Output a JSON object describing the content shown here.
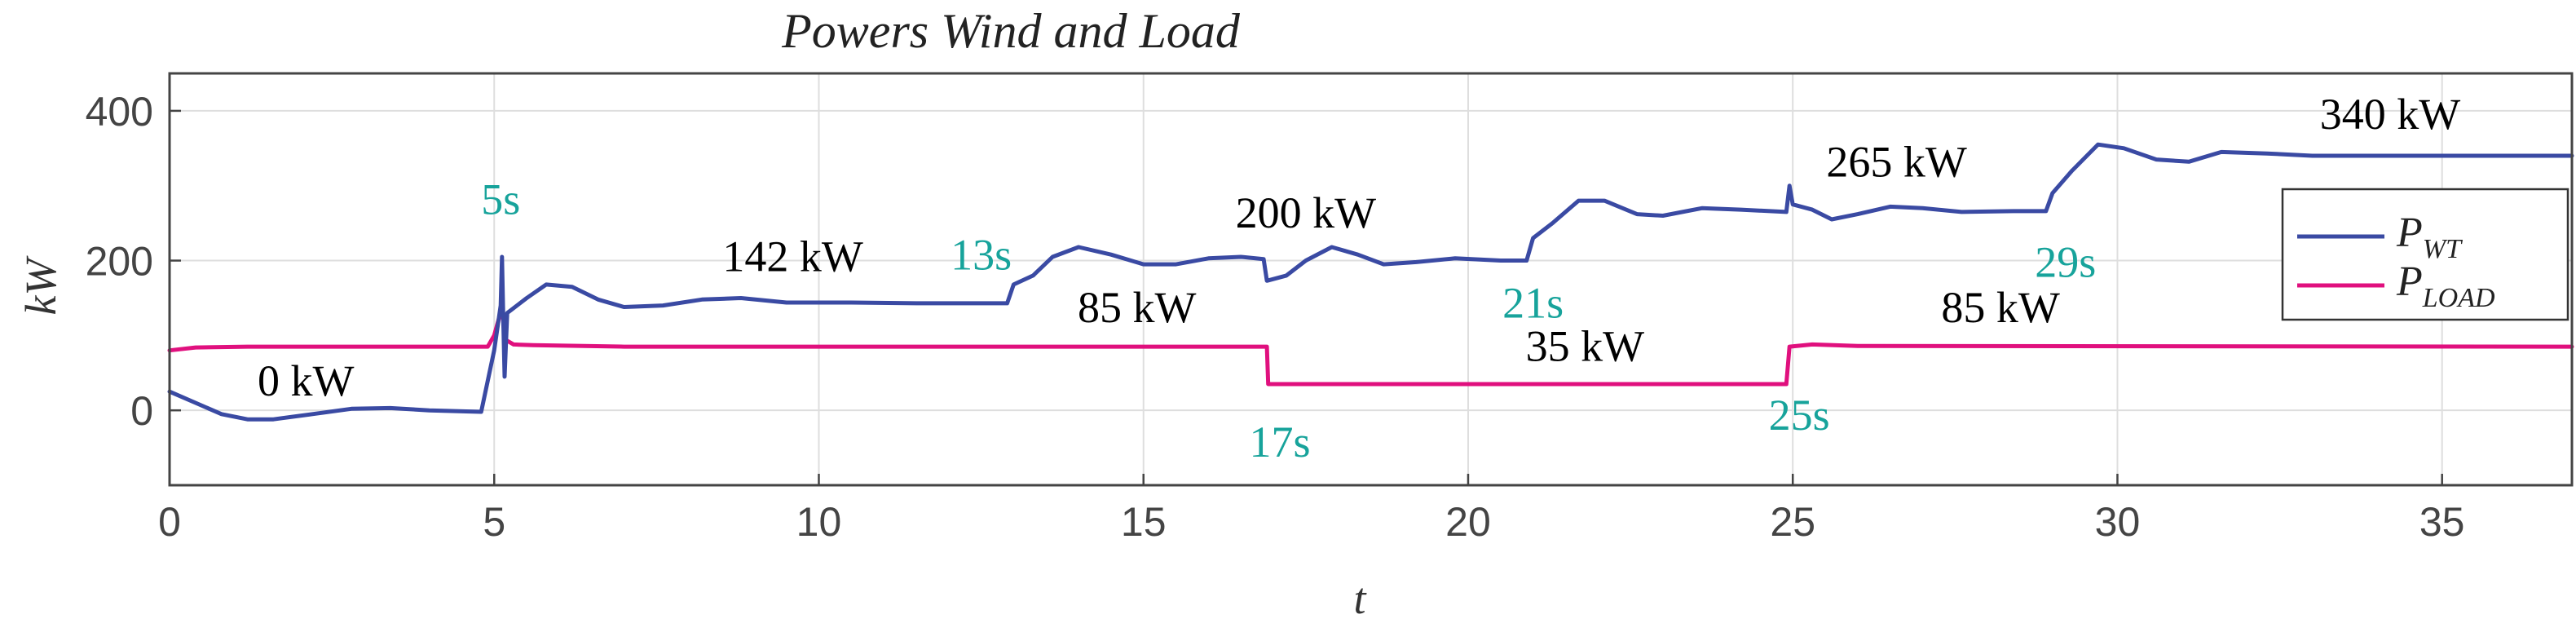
{
  "chart_data": {
    "type": "line",
    "title": "Powers Wind and Load",
    "xlabel": "t",
    "ylabel": "kW",
    "xlim": [
      0,
      37
    ],
    "ylim": [
      -100,
      450
    ],
    "xticks": [
      0,
      5,
      10,
      15,
      20,
      25,
      30,
      35
    ],
    "yticks": [
      0,
      200,
      400
    ],
    "grid": true,
    "legend_position": "right",
    "series": [
      {
        "name": "P_WT",
        "legend_main": "P",
        "legend_sub": "WT",
        "color": "#3a4aa3",
        "points": [
          [
            0,
            25
          ],
          [
            0.4,
            10
          ],
          [
            0.8,
            -5
          ],
          [
            1.2,
            -12
          ],
          [
            1.6,
            -12
          ],
          [
            2.2,
            -5
          ],
          [
            2.8,
            2
          ],
          [
            3.4,
            3
          ],
          [
            4,
            0
          ],
          [
            4.8,
            -2
          ],
          [
            5.0,
            80
          ],
          [
            5.1,
            140
          ],
          [
            5.12,
            205
          ],
          [
            5.14,
            120
          ],
          [
            5.16,
            45
          ],
          [
            5.2,
            130
          ],
          [
            5.5,
            150
          ],
          [
            5.8,
            168
          ],
          [
            6.2,
            165
          ],
          [
            6.6,
            148
          ],
          [
            7.0,
            138
          ],
          [
            7.6,
            140
          ],
          [
            8.2,
            148
          ],
          [
            8.8,
            150
          ],
          [
            9.5,
            144
          ],
          [
            10.5,
            144
          ],
          [
            11.5,
            143
          ],
          [
            12.5,
            143
          ],
          [
            12.9,
            143
          ],
          [
            13.0,
            168
          ],
          [
            13.3,
            180
          ],
          [
            13.6,
            205
          ],
          [
            14.0,
            218
          ],
          [
            14.5,
            208
          ],
          [
            15.0,
            195
          ],
          [
            15.5,
            195
          ],
          [
            16.0,
            203
          ],
          [
            16.5,
            205
          ],
          [
            16.85,
            202
          ],
          [
            16.9,
            173
          ],
          [
            17.2,
            180
          ],
          [
            17.5,
            200
          ],
          [
            17.9,
            218
          ],
          [
            18.3,
            208
          ],
          [
            18.7,
            195
          ],
          [
            19.2,
            198
          ],
          [
            19.8,
            203
          ],
          [
            20.5,
            200
          ],
          [
            20.9,
            200
          ],
          [
            21.0,
            230
          ],
          [
            21.3,
            250
          ],
          [
            21.7,
            280
          ],
          [
            22.1,
            280
          ],
          [
            22.6,
            262
          ],
          [
            23.0,
            260
          ],
          [
            23.6,
            270
          ],
          [
            24.2,
            268
          ],
          [
            24.9,
            265
          ],
          [
            24.95,
            300
          ],
          [
            25.0,
            275
          ],
          [
            25.3,
            268
          ],
          [
            25.6,
            255
          ],
          [
            26.0,
            262
          ],
          [
            26.5,
            272
          ],
          [
            27.0,
            270
          ],
          [
            27.6,
            265
          ],
          [
            28.4,
            266
          ],
          [
            28.9,
            266
          ],
          [
            29.0,
            290
          ],
          [
            29.3,
            320
          ],
          [
            29.7,
            355
          ],
          [
            30.1,
            350
          ],
          [
            30.6,
            335
          ],
          [
            31.1,
            332
          ],
          [
            31.6,
            345
          ],
          [
            32.3,
            343
          ],
          [
            33.0,
            340
          ],
          [
            35.0,
            340
          ],
          [
            37.0,
            340
          ]
        ]
      },
      {
        "name": "P_LOAD",
        "legend_main": "P",
        "legend_sub": "LOAD",
        "color": "#e0107e",
        "points": [
          [
            0,
            80
          ],
          [
            0.4,
            84
          ],
          [
            1.2,
            85
          ],
          [
            4.9,
            85
          ],
          [
            5.0,
            100
          ],
          [
            5.08,
            125
          ],
          [
            5.12,
            140
          ],
          [
            5.16,
            95
          ],
          [
            5.3,
            88
          ],
          [
            5.6,
            87
          ],
          [
            7,
            85
          ],
          [
            16.9,
            85
          ],
          [
            16.92,
            35
          ],
          [
            24.9,
            35
          ],
          [
            24.95,
            85
          ],
          [
            25.3,
            88
          ],
          [
            26,
            86
          ],
          [
            37,
            85
          ]
        ]
      }
    ],
    "annotations": [
      {
        "text": "0 kW",
        "x": 2.1,
        "y": 20,
        "color": "#000000",
        "kind": "value"
      },
      {
        "text": "142 kW",
        "x": 9.6,
        "y": 186,
        "color": "#000000",
        "kind": "value"
      },
      {
        "text": "85 kW",
        "x": 14.9,
        "y": 118,
        "color": "#000000",
        "kind": "value"
      },
      {
        "text": "200 kW",
        "x": 17.5,
        "y": 244,
        "color": "#000000",
        "kind": "value"
      },
      {
        "text": "35 kW",
        "x": 21.8,
        "y": 66,
        "color": "#000000",
        "kind": "value"
      },
      {
        "text": "265 kW",
        "x": 26.6,
        "y": 312,
        "color": "#000000",
        "kind": "value"
      },
      {
        "text": "85 kW",
        "x": 28.2,
        "y": 118,
        "color": "#000000",
        "kind": "value"
      },
      {
        "text": "340 kW",
        "x": 34.2,
        "y": 376,
        "color": "#000000",
        "kind": "value"
      },
      {
        "text": "5s",
        "x": 5.1,
        "y": 262,
        "color": "#17a39b",
        "kind": "time"
      },
      {
        "text": "13s",
        "x": 12.5,
        "y": 188,
        "color": "#17a39b",
        "kind": "time"
      },
      {
        "text": "17s",
        "x": 17.1,
        "y": -62,
        "color": "#17a39b",
        "kind": "time"
      },
      {
        "text": "21s",
        "x": 21.0,
        "y": 124,
        "color": "#17a39b",
        "kind": "time"
      },
      {
        "text": "25s",
        "x": 25.1,
        "y": -26,
        "color": "#17a39b",
        "kind": "time"
      },
      {
        "text": "29s",
        "x": 29.2,
        "y": 178,
        "color": "#17a39b",
        "kind": "time"
      }
    ]
  }
}
